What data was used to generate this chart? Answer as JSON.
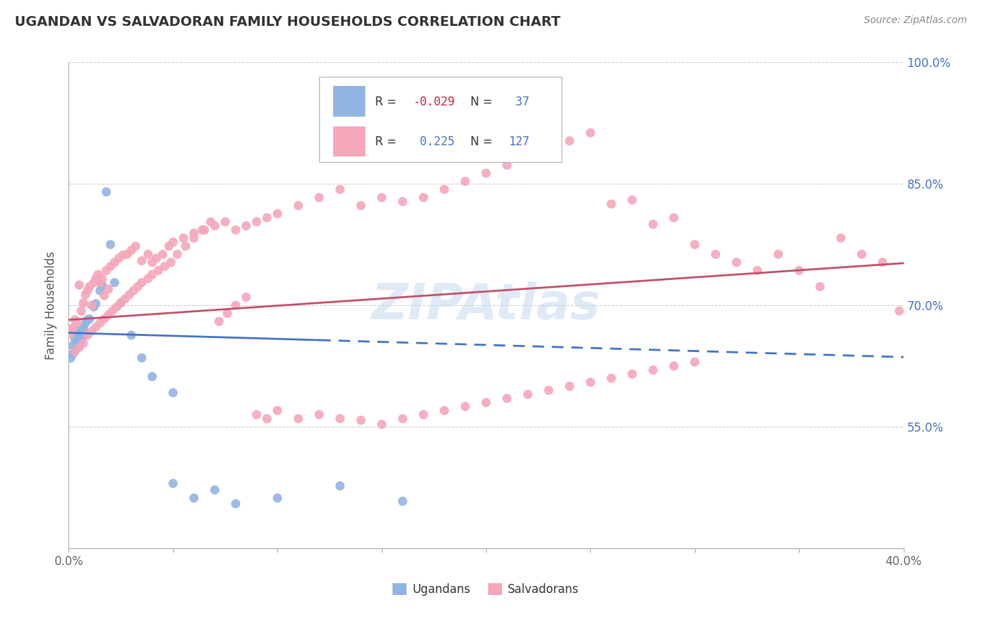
{
  "title": "UGANDAN VS SALVADORAN FAMILY HOUSEHOLDS CORRELATION CHART",
  "source": "Source: ZipAtlas.com",
  "ylabel": "Family Households",
  "xlabel_ugandans": "Ugandans",
  "xlabel_salvadorans": "Salvadorans",
  "xmin": 0.0,
  "xmax": 0.4,
  "ymin": 0.4,
  "ymax": 1.0,
  "yticks": [
    0.55,
    0.7,
    0.85,
    1.0
  ],
  "ytick_labels": [
    "55.0%",
    "70.0%",
    "85.0%",
    "100.0%"
  ],
  "legend_R1": "-0.029",
  "legend_N1": "37",
  "legend_R2": "0.225",
  "legend_N2": "127",
  "color_ugandan": "#92b4e3",
  "color_salvadoran": "#f4a7b9",
  "color_line_ugandan": "#4472c4",
  "color_line_salvadoran": "#c0506a",
  "watermark_text": "ZIPAtlas",
  "ugandan_x": [
    0.001,
    0.002,
    0.002,
    0.003,
    0.003,
    0.004,
    0.004,
    0.005,
    0.005,
    0.005,
    0.006,
    0.006,
    0.007,
    0.007,
    0.008,
    0.008,
    0.009,
    0.01,
    0.012,
    0.013,
    0.015,
    0.016,
    0.018,
    0.02,
    0.022,
    0.025,
    0.03,
    0.035,
    0.04,
    0.05,
    0.06,
    0.07,
    0.1,
    0.13,
    0.16,
    0.05,
    0.08
  ],
  "ugandan_y": [
    0.635,
    0.64,
    0.65,
    0.645,
    0.658,
    0.648,
    0.66,
    0.652,
    0.665,
    0.67,
    0.658,
    0.662,
    0.668,
    0.672,
    0.663,
    0.678,
    0.682,
    0.683,
    0.698,
    0.702,
    0.718,
    0.725,
    0.84,
    0.775,
    0.728,
    0.703,
    0.663,
    0.635,
    0.612,
    0.48,
    0.462,
    0.472,
    0.462,
    0.477,
    0.458,
    0.592,
    0.455
  ],
  "salvadoran_x": [
    0.001,
    0.002,
    0.003,
    0.004,
    0.005,
    0.006,
    0.007,
    0.008,
    0.009,
    0.01,
    0.011,
    0.012,
    0.013,
    0.014,
    0.015,
    0.016,
    0.017,
    0.018,
    0.019,
    0.02,
    0.022,
    0.024,
    0.026,
    0.028,
    0.03,
    0.032,
    0.035,
    0.038,
    0.04,
    0.042,
    0.045,
    0.048,
    0.05,
    0.055,
    0.06,
    0.065,
    0.07,
    0.075,
    0.08,
    0.085,
    0.09,
    0.095,
    0.1,
    0.11,
    0.12,
    0.13,
    0.14,
    0.15,
    0.16,
    0.17,
    0.18,
    0.19,
    0.2,
    0.21,
    0.22,
    0.23,
    0.24,
    0.25,
    0.26,
    0.27,
    0.28,
    0.29,
    0.3,
    0.31,
    0.32,
    0.33,
    0.34,
    0.35,
    0.36,
    0.37,
    0.38,
    0.39,
    0.398,
    0.003,
    0.005,
    0.007,
    0.009,
    0.011,
    0.013,
    0.015,
    0.017,
    0.019,
    0.021,
    0.023,
    0.025,
    0.027,
    0.029,
    0.031,
    0.033,
    0.035,
    0.038,
    0.04,
    0.043,
    0.046,
    0.049,
    0.052,
    0.056,
    0.06,
    0.064,
    0.068,
    0.072,
    0.076,
    0.08,
    0.085,
    0.09,
    0.095,
    0.1,
    0.11,
    0.12,
    0.13,
    0.14,
    0.15,
    0.16,
    0.17,
    0.18,
    0.19,
    0.2,
    0.21,
    0.22,
    0.23,
    0.24,
    0.25,
    0.26,
    0.27,
    0.28,
    0.29,
    0.3
  ],
  "salvadoran_y": [
    0.665,
    0.672,
    0.682,
    0.678,
    0.725,
    0.693,
    0.703,
    0.713,
    0.718,
    0.723,
    0.7,
    0.728,
    0.733,
    0.738,
    0.728,
    0.733,
    0.712,
    0.743,
    0.72,
    0.748,
    0.753,
    0.758,
    0.762,
    0.763,
    0.768,
    0.773,
    0.755,
    0.763,
    0.753,
    0.758,
    0.763,
    0.773,
    0.778,
    0.783,
    0.789,
    0.793,
    0.798,
    0.803,
    0.793,
    0.798,
    0.803,
    0.808,
    0.813,
    0.823,
    0.833,
    0.843,
    0.823,
    0.833,
    0.828,
    0.833,
    0.843,
    0.853,
    0.863,
    0.873,
    0.883,
    0.893,
    0.903,
    0.913,
    0.825,
    0.83,
    0.8,
    0.808,
    0.775,
    0.763,
    0.753,
    0.743,
    0.763,
    0.743,
    0.723,
    0.783,
    0.763,
    0.753,
    0.693,
    0.643,
    0.648,
    0.653,
    0.663,
    0.668,
    0.673,
    0.678,
    0.683,
    0.688,
    0.693,
    0.698,
    0.703,
    0.708,
    0.713,
    0.718,
    0.723,
    0.728,
    0.733,
    0.738,
    0.743,
    0.748,
    0.753,
    0.763,
    0.773,
    0.783,
    0.793,
    0.803,
    0.68,
    0.69,
    0.7,
    0.71,
    0.565,
    0.56,
    0.57,
    0.56,
    0.565,
    0.56,
    0.558,
    0.553,
    0.56,
    0.565,
    0.57,
    0.575,
    0.58,
    0.585,
    0.59,
    0.595,
    0.6,
    0.605,
    0.61,
    0.615,
    0.62,
    0.625,
    0.63
  ]
}
